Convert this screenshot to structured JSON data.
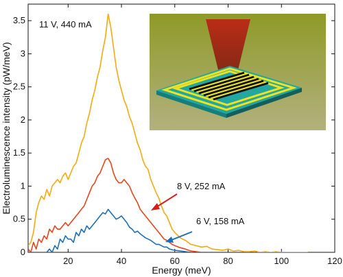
{
  "chart_data": {
    "type": "line",
    "xlabel": "Energy (meV)",
    "ylabel": "Electroluminescence intensity (pW/meV)",
    "xlim": [
      5,
      120
    ],
    "ylim": [
      0,
      3.75
    ],
    "x_ticks": [
      "20",
      "40",
      "60",
      "80",
      "100",
      "120"
    ],
    "y_ticks": [
      "0",
      "0.5",
      "1",
      "1.5",
      "2",
      "2.5",
      "3",
      "3.5"
    ],
    "grid": false,
    "legend": "none",
    "annotations": {
      "orange": "11 V, 440 mA",
      "red": "8 V, 252 mA",
      "blue": "6 V, 158 mA"
    },
    "inset_illustration": {
      "description_visible": "device illustration with red beam",
      "background": "#9aa43a"
    },
    "series": [
      {
        "color": "#f5a90f",
        "x": [
          5,
          6,
          7,
          8,
          9,
          10,
          11,
          12,
          13,
          14,
          15,
          16,
          17,
          18,
          19,
          20,
          21,
          22,
          23,
          24,
          25,
          26,
          27,
          28,
          29,
          30,
          31,
          32,
          33,
          34,
          35,
          36,
          37,
          38,
          39,
          40,
          41,
          42,
          43,
          44,
          45,
          46,
          47,
          48,
          49,
          50,
          51,
          52,
          53,
          54,
          55,
          56,
          57,
          58,
          59,
          60,
          62,
          64,
          66,
          68,
          70,
          72,
          74,
          76,
          78,
          80,
          82,
          84,
          86,
          88,
          90,
          92,
          94,
          96,
          98,
          100,
          102,
          104,
          106,
          108,
          110
        ],
        "values": [
          0.1,
          0.15,
          0.3,
          0.6,
          0.75,
          0.85,
          0.8,
          0.95,
          0.85,
          1.0,
          1.05,
          1.1,
          1.05,
          1.15,
          1.2,
          1.1,
          1.2,
          1.3,
          1.35,
          1.5,
          1.65,
          1.75,
          1.95,
          2.1,
          2.3,
          2.45,
          2.65,
          2.8,
          3.05,
          3.25,
          3.6,
          3.4,
          3.1,
          2.8,
          2.6,
          2.45,
          2.3,
          2.2,
          2.05,
          1.95,
          1.8,
          1.65,
          1.55,
          1.4,
          1.3,
          1.25,
          1.1,
          1.0,
          0.9,
          0.82,
          0.7,
          0.6,
          0.55,
          0.45,
          0.35,
          0.3,
          0.22,
          0.18,
          0.12,
          0.1,
          0.08,
          0.09,
          0.05,
          0.04,
          0.03,
          0.05,
          0.02,
          0.03,
          0.01,
          0.01,
          0.02,
          0.0,
          0.01,
          0.0,
          0.01,
          0.0,
          0.0,
          0.0,
          0.0,
          0.0,
          0.0
        ]
      },
      {
        "color": "#e5441a",
        "x": [
          5,
          6,
          7,
          8,
          9,
          10,
          11,
          12,
          13,
          14,
          15,
          16,
          17,
          18,
          19,
          20,
          21,
          22,
          23,
          24,
          25,
          26,
          27,
          28,
          29,
          30,
          31,
          32,
          33,
          34,
          35,
          36,
          37,
          38,
          39,
          40,
          41,
          42,
          43,
          44,
          45,
          46,
          47,
          48,
          49,
          50,
          51,
          52,
          53,
          54,
          55,
          56,
          57,
          58,
          59,
          60,
          62,
          64,
          66,
          68,
          70
        ],
        "values": [
          0.05,
          0.0,
          0.15,
          0.05,
          0.2,
          0.15,
          0.25,
          0.2,
          0.35,
          0.3,
          0.4,
          0.35,
          0.35,
          0.4,
          0.45,
          0.4,
          0.45,
          0.5,
          0.55,
          0.6,
          0.65,
          0.7,
          0.8,
          0.9,
          1.0,
          1.05,
          1.15,
          1.2,
          1.3,
          1.4,
          1.42,
          1.35,
          1.2,
          1.1,
          1.05,
          1.05,
          1.1,
          1.05,
          1.0,
          0.9,
          0.82,
          0.75,
          0.65,
          0.6,
          0.55,
          0.5,
          0.45,
          0.4,
          0.35,
          0.3,
          0.25,
          0.2,
          0.18,
          0.15,
          0.12,
          0.1,
          0.07,
          0.05,
          0.02,
          0.01,
          0.0
        ]
      },
      {
        "color": "#1a6fb8",
        "x": [
          12,
          13,
          14,
          15,
          16,
          17,
          18,
          19,
          20,
          21,
          22,
          23,
          24,
          25,
          26,
          27,
          28,
          29,
          30,
          31,
          32,
          33,
          34,
          35,
          36,
          37,
          38,
          39,
          40,
          41,
          42,
          43,
          44,
          45,
          46,
          47,
          48,
          49,
          50,
          51,
          52,
          53,
          54,
          55,
          56,
          57,
          58,
          59,
          60,
          62,
          64,
          66
        ],
        "values": [
          0.0,
          0.05,
          0.0,
          0.1,
          0.05,
          0.2,
          0.15,
          0.25,
          0.2,
          0.2,
          0.15,
          0.3,
          0.25,
          0.35,
          0.3,
          0.4,
          0.35,
          0.4,
          0.45,
          0.5,
          0.55,
          0.6,
          0.58,
          0.65,
          0.6,
          0.55,
          0.5,
          0.52,
          0.55,
          0.5,
          0.45,
          0.38,
          0.35,
          0.3,
          0.32,
          0.28,
          0.25,
          0.22,
          0.2,
          0.18,
          0.15,
          0.12,
          0.12,
          0.1,
          0.08,
          0.08,
          0.05,
          0.04,
          0.03,
          0.02,
          0.01,
          0.0
        ]
      }
    ]
  }
}
